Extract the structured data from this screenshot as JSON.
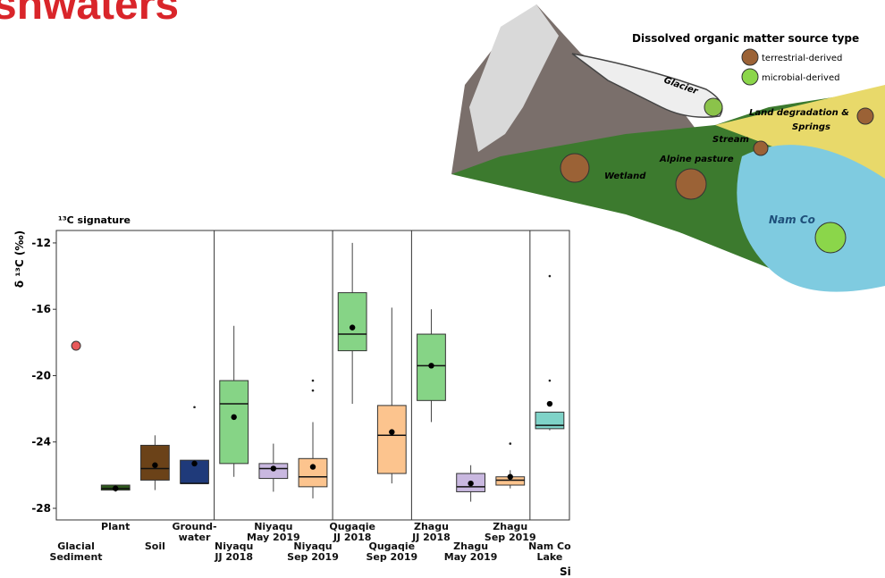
{
  "slide_title": "shwaters",
  "diagram": {
    "legend_title": "Dissolved organic matter source type",
    "legend_items": [
      "terrestrial-derived",
      "microbial-derived"
    ],
    "labels": {
      "glacier": "Glacier",
      "land": "Land degradation &",
      "springs": "Springs",
      "stream": "Stream",
      "pasture": "Alpine pasture",
      "wetland": "Wetland",
      "lake": "Nam Co"
    }
  },
  "chart_data": {
    "type": "box",
    "title": "¹³C signature",
    "y_label": "δ ¹³C (‰)",
    "x_label": "Si",
    "ylim": [
      -28.7,
      -11.25
    ],
    "yticks": [
      -12,
      -16,
      -20,
      -24,
      -28
    ],
    "categories": [
      "Glacial\nSediment",
      "Plant",
      "Soil",
      "Ground-\nwater",
      "Niyaqu\nJJ 2018",
      "Niyaqu\nMay 2019",
      "Niyaqu\nSep 2019",
      "Qugaqie\nJJ 2018",
      "Qugaqie\nSep 2019",
      "Zhagu\nJJ 2018",
      "Zhagu\nMay 2019",
      "Zhagu\nSep 2019",
      "Nam Co\nLake"
    ],
    "boxes": [
      {
        "color": "#e8595a",
        "points": [
          -18.2
        ]
      },
      {
        "color": "#2e5a1c",
        "low": -27.0,
        "q1": -26.9,
        "median": -26.8,
        "q3": -26.6,
        "high": -26.6,
        "mean": -26.8
      },
      {
        "color": "#6b4218",
        "low": -26.9,
        "q1": -26.3,
        "median": -25.6,
        "q3": -24.2,
        "high": -23.6,
        "mean": -25.4
      },
      {
        "color": "#1f3a7a",
        "low": -26.5,
        "q1": -26.5,
        "median": -26.5,
        "q3": -25.1,
        "high": -25.1,
        "mean": -25.3,
        "outliers": [
          -21.9
        ]
      },
      {
        "color": "#86d486",
        "low": -26.1,
        "q1": -25.3,
        "median": -21.7,
        "q3": -20.3,
        "high": -17.0,
        "mean": -22.5
      },
      {
        "color": "#c9b8e0",
        "low": -27.0,
        "q1": -26.2,
        "median": -25.6,
        "q3": -25.3,
        "high": -24.1,
        "mean": -25.6
      },
      {
        "color": "#fcc48e",
        "low": -27.4,
        "q1": -26.7,
        "median": -26.1,
        "q3": -25.0,
        "high": -22.8,
        "mean": -25.5,
        "outliers": [
          -20.3,
          -20.9
        ]
      },
      {
        "color": "#86d486",
        "low": -21.7,
        "q1": -18.5,
        "median": -17.5,
        "q3": -15.0,
        "high": -12.0,
        "mean": -17.1
      },
      {
        "color": "#fcc48e",
        "low": -26.5,
        "q1": -25.9,
        "median": -23.6,
        "q3": -21.8,
        "high": -15.9,
        "mean": -23.4
      },
      {
        "color": "#86d486",
        "low": -22.8,
        "q1": -21.5,
        "median": -19.4,
        "q3": -17.5,
        "high": -16.0,
        "mean": -19.4
      },
      {
        "color": "#c9b8e0",
        "low": -27.6,
        "q1": -27.0,
        "median": -26.7,
        "q3": -25.9,
        "high": -25.4,
        "mean": -26.5
      },
      {
        "color": "#fcc48e",
        "low": -26.8,
        "q1": -26.6,
        "median": -26.3,
        "q3": -26.1,
        "high": -25.7,
        "mean": -26.1,
        "outliers": [
          -24.1
        ]
      },
      {
        "color": "#7fd3c8",
        "low": -23.3,
        "q1": -23.2,
        "median": -23.0,
        "q3": -22.2,
        "high": -22.2,
        "mean": -21.7,
        "outliers": [
          -14.0,
          -20.3
        ]
      }
    ]
  }
}
